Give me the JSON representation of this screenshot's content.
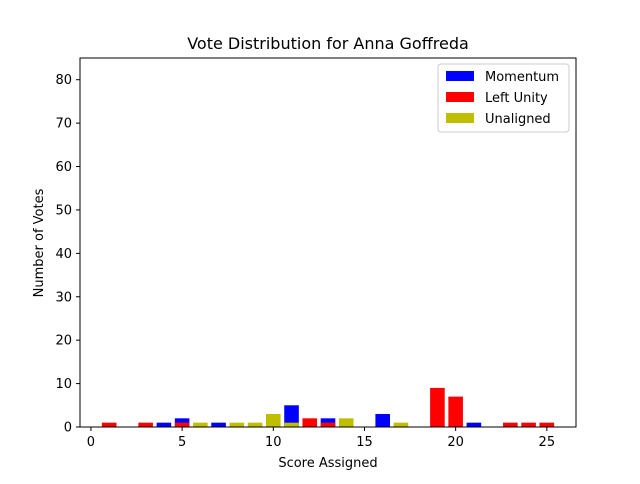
{
  "chart_data": {
    "type": "bar",
    "title": "Vote Distribution for Anna Goffreda",
    "xlabel": "Score Assigned",
    "ylabel": "Number of Votes",
    "xlim": [
      -0.6,
      26.6
    ],
    "ylim": [
      0,
      85
    ],
    "xticks": [
      "0",
      "5",
      "10",
      "15",
      "20",
      "25"
    ],
    "xtick_values": [
      0,
      5,
      10,
      15,
      20,
      25
    ],
    "yticks": [
      "0",
      "10",
      "20",
      "30",
      "40",
      "50",
      "60",
      "70",
      "80"
    ],
    "ytick_values": [
      0,
      10,
      20,
      30,
      40,
      50,
      60,
      70,
      80
    ],
    "grid": false,
    "legend_position": "top-right",
    "series": [
      {
        "name": "Momentum",
        "color": "#0000ff",
        "points": [
          {
            "x": 4,
            "y": 1
          },
          {
            "x": 5,
            "y": 2
          },
          {
            "x": 7,
            "y": 1
          },
          {
            "x": 11,
            "y": 5
          },
          {
            "x": 13,
            "y": 2
          },
          {
            "x": 16,
            "y": 3
          },
          {
            "x": 21,
            "y": 1
          }
        ]
      },
      {
        "name": "Left Unity",
        "color": "#ff0000",
        "points": [
          {
            "x": 1,
            "y": 1
          },
          {
            "x": 3,
            "y": 1
          },
          {
            "x": 5,
            "y": 1
          },
          {
            "x": 12,
            "y": 2
          },
          {
            "x": 13,
            "y": 1
          },
          {
            "x": 19,
            "y": 9
          },
          {
            "x": 20,
            "y": 7
          },
          {
            "x": 23,
            "y": 1
          },
          {
            "x": 24,
            "y": 1
          },
          {
            "x": 25,
            "y": 1
          }
        ]
      },
      {
        "name": "Unaligned",
        "color": "#bfbf00",
        "points": [
          {
            "x": 6,
            "y": 1
          },
          {
            "x": 8,
            "y": 1
          },
          {
            "x": 9,
            "y": 1
          },
          {
            "x": 10,
            "y": 3
          },
          {
            "x": 11,
            "y": 1
          },
          {
            "x": 14,
            "y": 2
          },
          {
            "x": 17,
            "y": 1
          }
        ]
      }
    ]
  }
}
